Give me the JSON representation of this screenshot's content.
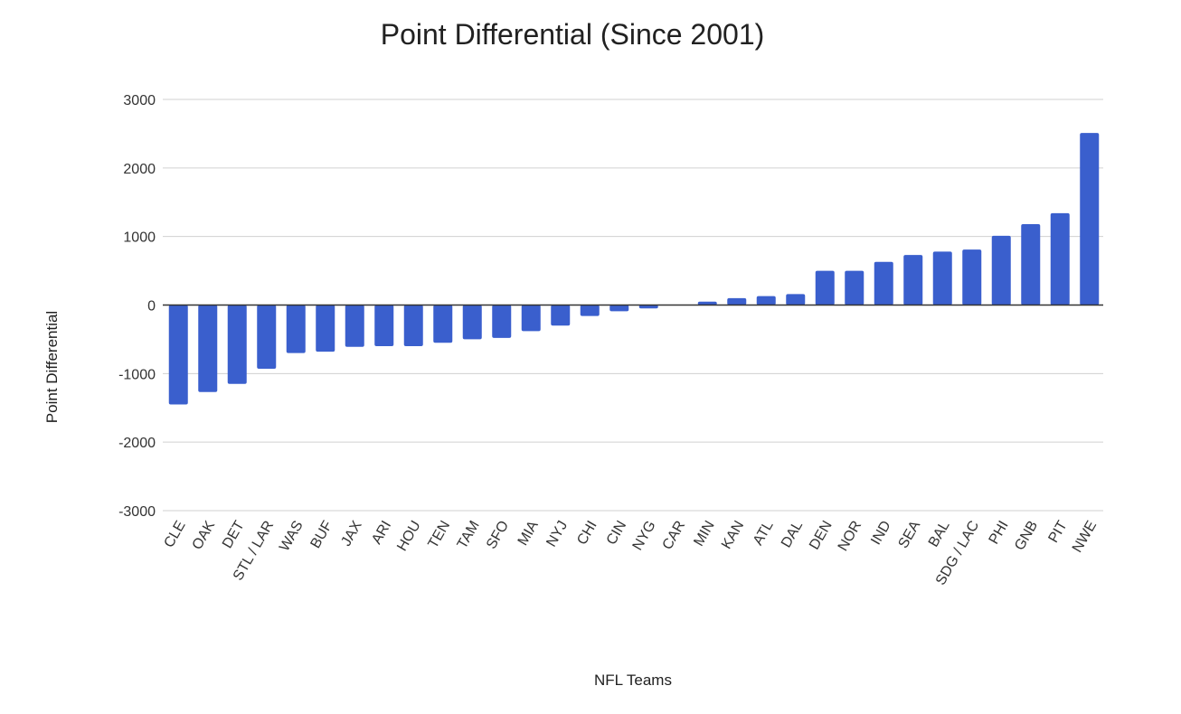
{
  "chart_data": {
    "type": "bar",
    "title": "Point Differential (Since 2001)",
    "xlabel": "NFL Teams",
    "ylabel": "Point Differential",
    "ylim": [
      -3000,
      3000
    ],
    "yticks": [
      3000,
      2000,
      1000,
      0,
      -1000,
      -2000,
      -3000
    ],
    "grid": true,
    "legend": "none",
    "bar_color": "#3a5fcd",
    "categories": [
      "CLE",
      "OAK",
      "DET",
      "STL / LAR",
      "WAS",
      "BUF",
      "JAX",
      "ARI",
      "HOU",
      "TEN",
      "TAM",
      "SFO",
      "MIA",
      "NYJ",
      "CHI",
      "CIN",
      "NYG",
      "CAR",
      "MIN",
      "KAN",
      "ATL",
      "DAL",
      "DEN",
      "NOR",
      "IND",
      "SEA",
      "BAL",
      "SDG / LAC",
      "PHI",
      "GNB",
      "PIT",
      "NWE"
    ],
    "values": [
      -1450,
      -1270,
      -1150,
      -930,
      -700,
      -680,
      -610,
      -600,
      -600,
      -550,
      -500,
      -480,
      -380,
      -300,
      -160,
      -90,
      -50,
      0,
      50,
      100,
      130,
      160,
      500,
      500,
      630,
      730,
      780,
      810,
      1010,
      1180,
      1340,
      2510
    ]
  }
}
